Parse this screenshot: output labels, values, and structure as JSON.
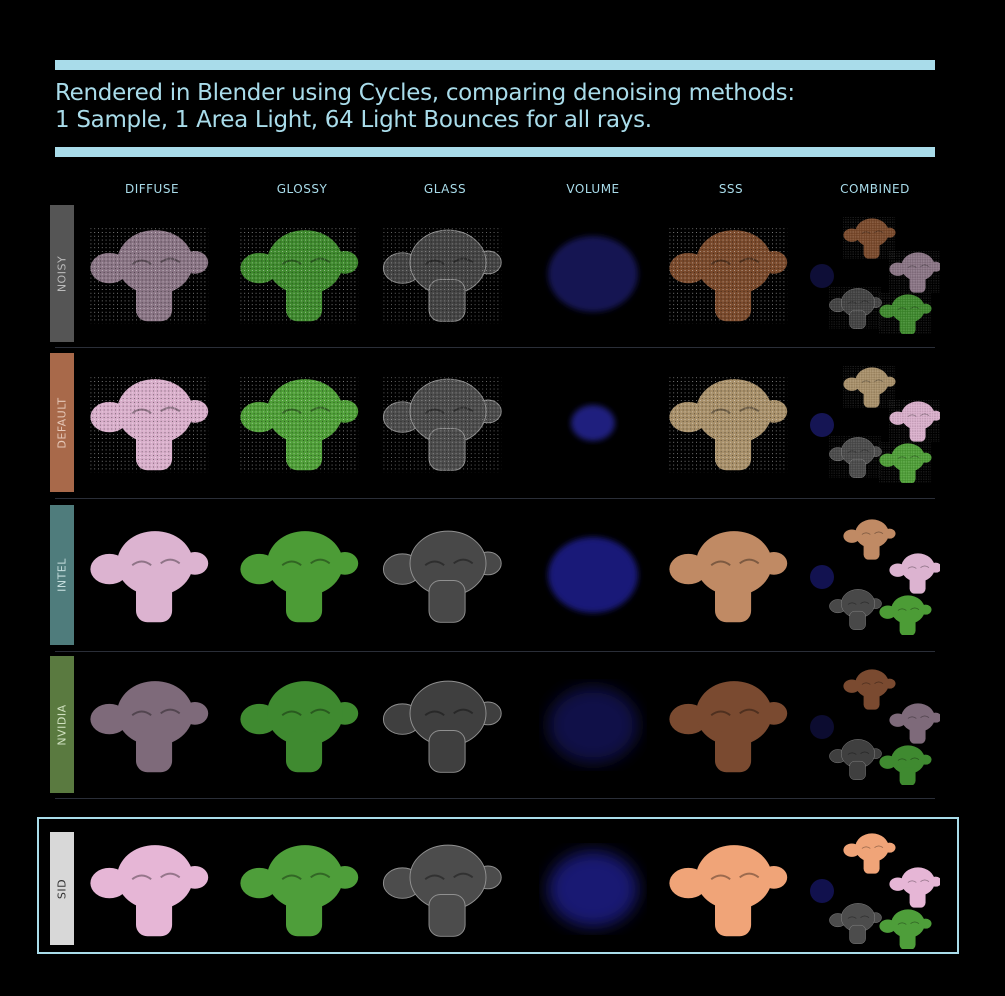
{
  "title": {
    "line1": "Rendered in Blender using Cycles, comparing denoising methods:",
    "line2": "1 Sample, 1 Area Light, 64 Light Bounces for all rays."
  },
  "columns": [
    "DIFFUSE",
    "GLOSSY",
    "GLASS",
    "VOLUME",
    "SSS",
    "COMBINED"
  ],
  "rows": [
    {
      "label": "NOISY",
      "label_bg": "#555555",
      "label_fg": "#bbbbbb",
      "cells": [
        "#8a7585",
        "#3f8a2e",
        "#505050",
        "#1c1c6e",
        "#7a4a2c"
      ],
      "noisy": true
    },
    {
      "label": "DEFAULT",
      "label_bg": "#a8694a",
      "label_fg": "#e6c8b8",
      "cells": [
        "#d9afcb",
        "#4f9f38",
        "#5a5a5a",
        "#2a2aa8",
        "#a8906a"
      ],
      "noisy": true
    },
    {
      "label": "INTEL",
      "label_bg": "#4f7c7c",
      "label_fg": "#c6dede",
      "cells": [
        "#dcb3d0",
        "#4c9c36",
        "#555555",
        "#2424a0",
        "#c08a64"
      ],
      "noisy": false
    },
    {
      "label": "NVIDIA",
      "label_bg": "#5a7a40",
      "label_fg": "#cfe0bf",
      "cells": [
        "#7e6a7a",
        "#3f8a30",
        "#4a4a4a",
        "#181860",
        "#7a4a30"
      ],
      "noisy": false
    },
    {
      "label": "SID",
      "label_bg": "#d8d8d8",
      "label_fg": "#333333",
      "cells": [
        "#e6b6d6",
        "#4e9e3a",
        "#5a5a5a",
        "#22229a",
        "#f0a478"
      ],
      "noisy": false
    }
  ]
}
